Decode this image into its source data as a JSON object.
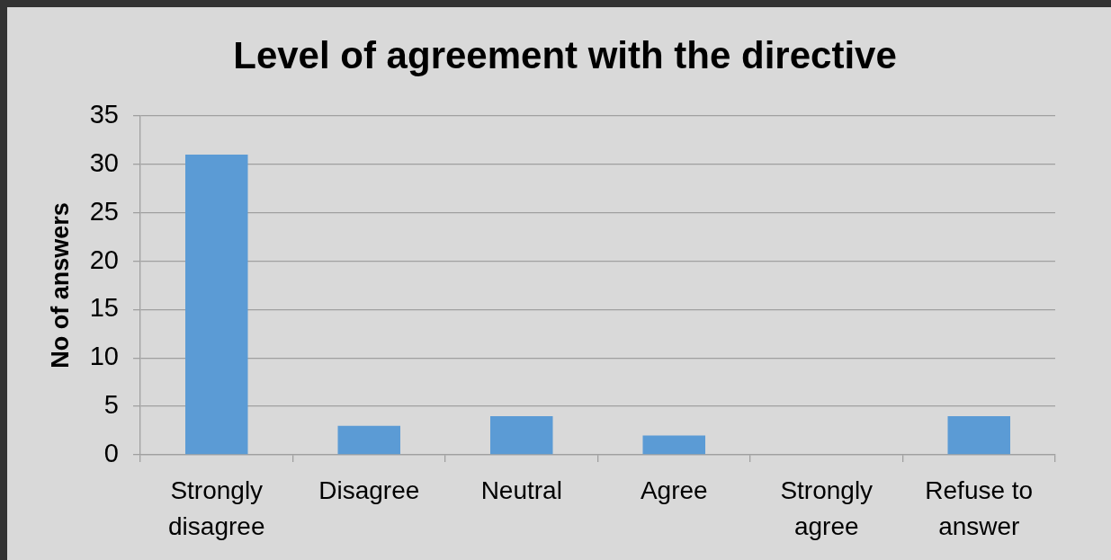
{
  "chart_data": {
    "type": "bar",
    "title": "Level of agreement with the directive",
    "ylabel": "No of answers",
    "categories": [
      "Strongly disagree",
      "Disagree",
      "Neutral",
      "Agree",
      "Strongly agree",
      "Refuse to answer"
    ],
    "values": [
      31,
      3,
      4,
      2,
      0,
      4
    ],
    "color": "#5b9bd5",
    "ylim": [
      0,
      35
    ],
    "yticks": [
      0,
      5,
      10,
      15,
      20,
      25,
      30,
      35
    ],
    "grid": "y"
  }
}
